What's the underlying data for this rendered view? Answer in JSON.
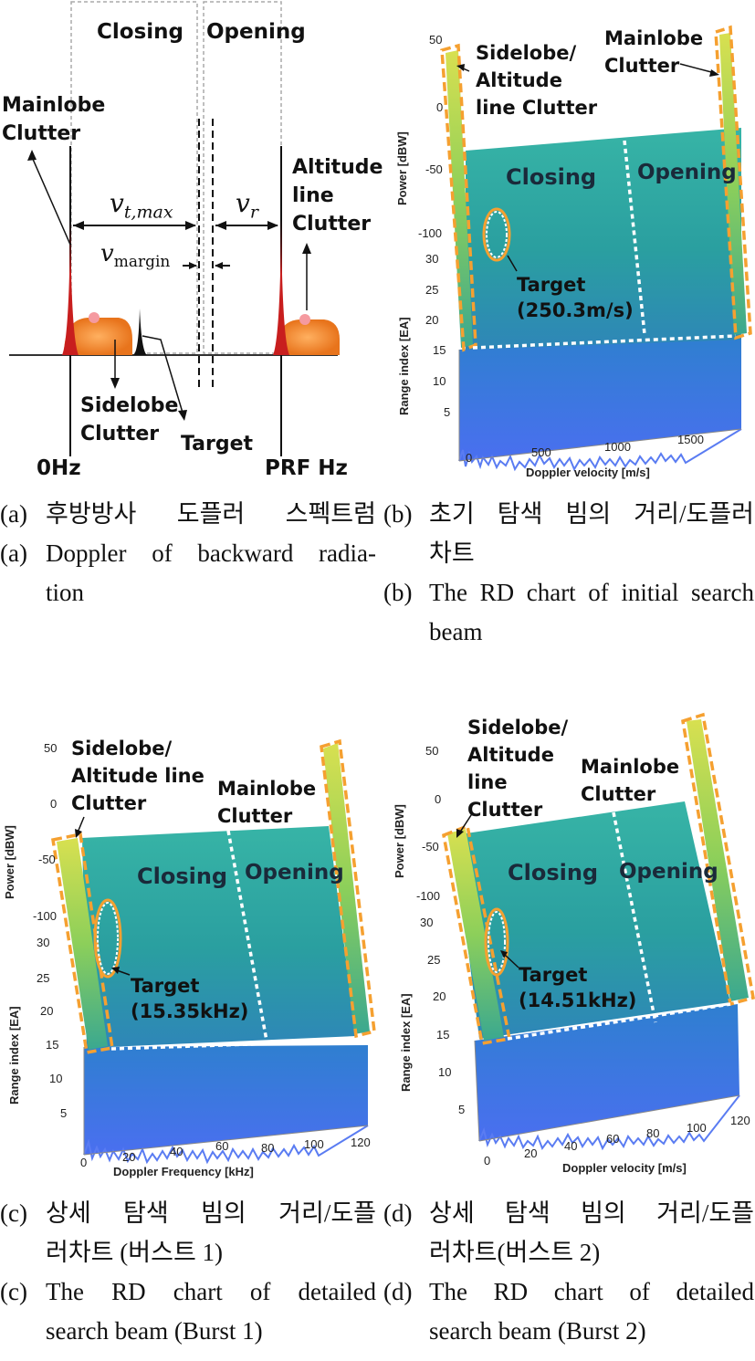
{
  "panel_a": {
    "region_closing": "Closing",
    "region_opening": "Opening",
    "mainlobe_clutter": [
      "Mainlobe",
      "Clutter"
    ],
    "altitude_clutter": [
      "Altitude",
      "line",
      "Clutter"
    ],
    "sidelobe_clutter": [
      "Sidelobe",
      "Clutter"
    ],
    "target": "Target",
    "v_t_max": "v",
    "v_t_max_sub": "t,max",
    "v_r": "v",
    "v_r_sub": "r",
    "v_margin": "v",
    "v_margin_sub": "margin",
    "zero_hz": "0Hz",
    "prf_hz": "PRF Hz"
  },
  "panel_b": {
    "sidelobe_label": [
      "Sidelobe/",
      "Altitude",
      "line Clutter"
    ],
    "mainlobe_label": [
      "Mainlobe",
      "Clutter"
    ],
    "closing": "Closing",
    "opening": "Opening",
    "target": [
      "Target",
      "(250.3m/s)"
    ],
    "power_axis": "Power [dBW]",
    "range_axis": "Range index [EA]",
    "x_axis": "Doppler velocity [m/s]",
    "power_ticks": [
      "50",
      "0",
      "-50",
      "-100"
    ],
    "range_ticks": [
      "30",
      "25",
      "20",
      "15",
      "10",
      "5"
    ],
    "x_ticks": [
      "0",
      "500",
      "1000",
      "1500"
    ]
  },
  "panel_c": {
    "sidelobe_label": [
      "Sidelobe/",
      "Altitude line",
      "Clutter"
    ],
    "mainlobe_label": [
      "Mainlobe",
      "Clutter"
    ],
    "closing": "Closing",
    "opening": "Opening",
    "target": [
      "Target",
      "(15.35kHz)"
    ],
    "power_axis": "Power [dBW]",
    "range_axis": "Range index [EA]",
    "x_axis": "Doppler Frequency [kHz]",
    "power_ticks": [
      "50",
      "0",
      "-50",
      "-100"
    ],
    "range_ticks": [
      "30",
      "25",
      "20",
      "15",
      "10",
      "5"
    ],
    "x_ticks": [
      "0",
      "20",
      "40",
      "60",
      "80",
      "100",
      "120"
    ]
  },
  "panel_d": {
    "sidelobe_label": [
      "Sidelobe/",
      "Altitude",
      "line",
      "Clutter"
    ],
    "mainlobe_label": [
      "Mainlobe",
      "Clutter"
    ],
    "closing": "Closing",
    "opening": "Opening",
    "target": [
      "Target",
      "(14.51kHz)"
    ],
    "power_axis": "Power [dBW]",
    "range_axis": "Range index [EA]",
    "x_axis": "Doppler velocity [m/s]",
    "power_ticks": [
      "50",
      "0",
      "-50",
      "-100"
    ],
    "range_ticks": [
      "30",
      "25",
      "20",
      "15",
      "10",
      "5"
    ],
    "x_ticks": [
      "0",
      "20",
      "40",
      "60",
      "80",
      "100",
      "120"
    ]
  },
  "captions": {
    "a_kr_key": "(a)",
    "a_kr": "후방방사 도플러 스펙트럼",
    "a_en_key": "(a)",
    "a_en": [
      "Doppler of backward radia-",
      "tion"
    ],
    "b_kr_key": "(b)",
    "b_kr": [
      "초기 탐색 빔의 거리/도플러",
      "차트"
    ],
    "b_en_key": "(b)",
    "b_en": [
      "The RD chart of initial search",
      "beam"
    ],
    "c_kr_key": "(c)",
    "c_kr": [
      "상세 탐색 빔의 거리/도플",
      "러차트 (버스트 1)"
    ],
    "c_en_key": "(c)",
    "c_en": [
      "The RD chart of detailed",
      "search beam (Burst 1)"
    ],
    "d_kr_key": "(d)",
    "d_kr": [
      "상세 탐색 빔의 거리/도플",
      "러차트(버스트 2)"
    ],
    "d_en_key": "(d)",
    "d_en": [
      "The RD chart of detailed",
      "search beam (Burst 2)"
    ]
  },
  "colors": {
    "clutter_red": "#c81e1e",
    "sidelobe_orange": "#f08a2a",
    "outline_orange": "#f5a030",
    "field_teal": "#2aa39a",
    "noise_blue": "#3a6fe0",
    "ridge_yellow": "#e8e04a"
  }
}
